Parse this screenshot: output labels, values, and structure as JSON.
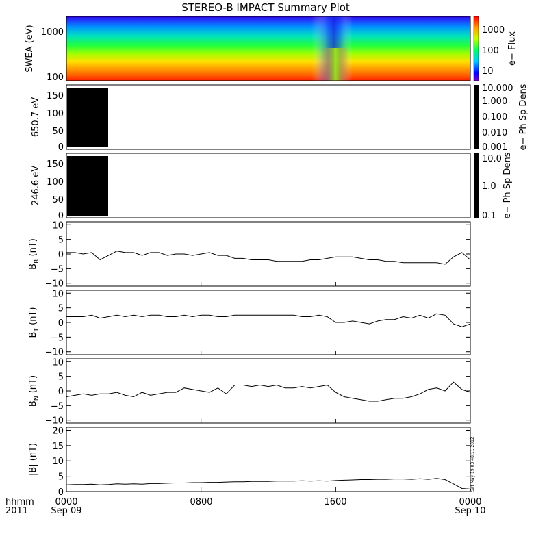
{
  "title": "STEREO-B IMPACT Summary Plot",
  "footer": {
    "x_unit": "hhmm",
    "year": "2011",
    "x_ticks": [
      "0000",
      "0800",
      "1600",
      "0000"
    ],
    "x_subticks": [
      "Sep 09",
      "Sep 10"
    ],
    "stamp": "Sat May 19 03:48:11 2012"
  },
  "panels": [
    {
      "ylabel": "SWEA (eV)",
      "cbar_label": "e− Flux",
      "yticks": [
        "1000",
        "100"
      ],
      "cbar_ticks": [
        "1000",
        "100",
        "10"
      ]
    },
    {
      "ylabel": "650.7 eV",
      "cbar_label": "e− Ph Sp Dens",
      "yticks": [
        "150",
        "100",
        "50",
        "0"
      ],
      "cbar_ticks": [
        "10.000",
        "1.000",
        "0.100",
        "0.010",
        "0.001"
      ]
    },
    {
      "ylabel": "246.6 eV",
      "cbar_label": "e− Ph Sp Dens",
      "yticks": [
        "150",
        "100",
        "50",
        "0"
      ],
      "cbar_ticks": [
        "10.0",
        "1.0",
        "0.1"
      ]
    },
    {
      "ylabel": "B",
      "ylabel_sub": "R",
      "ylabel_unit": " (nT)",
      "yticks": [
        "10",
        "5",
        "0",
        "−5",
        "−10"
      ]
    },
    {
      "ylabel": "B",
      "ylabel_sub": "T",
      "ylabel_unit": " (nT)",
      "yticks": [
        "10",
        "5",
        "0",
        "−5",
        "−10"
      ]
    },
    {
      "ylabel": "B",
      "ylabel_sub": "N",
      "ylabel_unit": " (nT)",
      "yticks": [
        "10",
        "5",
        "0",
        "−5",
        "−10"
      ]
    },
    {
      "ylabel": "|B| (nT)",
      "yticks": [
        "20",
        "15",
        "10",
        "5",
        "0"
      ]
    }
  ],
  "chart_data": [
    {
      "type": "heatmap",
      "ylabel": "SWEA (eV)",
      "ylog": true,
      "ylim": [
        90,
        2000
      ],
      "colorbar": {
        "label": "e− Flux",
        "log": true,
        "range": [
          5,
          3000
        ]
      },
      "x_range_hours": [
        0,
        24
      ],
      "note": "flux decreases with energy; depletion near 16:00-16:30"
    },
    {
      "type": "heatmap",
      "ylabel": "650.7 eV",
      "ylim": [
        0,
        180
      ],
      "colorbar": {
        "label": "e− Ph Sp Dens",
        "log": true,
        "range": [
          0.001,
          10
        ]
      },
      "filled_x_hours": [
        0,
        2.6
      ]
    },
    {
      "type": "heatmap",
      "ylabel": "246.6 eV",
      "ylim": [
        0,
        180
      ],
      "colorbar": {
        "label": "e− Ph Sp Dens",
        "log": true,
        "range": [
          0.1,
          10
        ]
      },
      "filled_x_hours": [
        0,
        2.6
      ]
    },
    {
      "type": "line",
      "ylabel": "BR (nT)",
      "ylim": [
        -11,
        11
      ],
      "x": [
        0,
        0.5,
        1,
        1.5,
        2,
        2.5,
        3,
        3.5,
        4,
        4.5,
        5,
        5.5,
        6,
        6.5,
        7,
        7.5,
        8,
        8.5,
        9,
        9.5,
        10,
        10.5,
        11,
        11.5,
        12,
        12.5,
        13,
        13.5,
        14,
        14.5,
        15,
        15.5,
        16,
        16.5,
        17,
        17.5,
        18,
        18.5,
        19,
        19.5,
        20,
        20.5,
        21,
        21.5,
        22,
        22.5,
        23,
        23.5,
        24
      ],
      "y": [
        0.5,
        0.5,
        0,
        0.5,
        -2,
        -0.5,
        1,
        0.5,
        0.5,
        -0.5,
        0.5,
        0.5,
        -0.5,
        0,
        0,
        -0.5,
        0,
        0.5,
        -0.5,
        -0.5,
        -1.5,
        -1.5,
        -2,
        -2,
        -2,
        -2.5,
        -2.5,
        -2.5,
        -2.5,
        -2,
        -2,
        -1.5,
        -1,
        -1,
        -1,
        -1.5,
        -2,
        -2,
        -2.5,
        -2.5,
        -3,
        -3,
        -3,
        -3,
        -3,
        -3.5,
        -1,
        0.5,
        -2
      ]
    },
    {
      "type": "line",
      "ylabel": "BT (nT)",
      "ylim": [
        -11,
        11
      ],
      "x": [
        0,
        0.5,
        1,
        1.5,
        2,
        2.5,
        3,
        3.5,
        4,
        4.5,
        5,
        5.5,
        6,
        6.5,
        7,
        7.5,
        8,
        8.5,
        9,
        9.5,
        10,
        10.5,
        11,
        11.5,
        12,
        12.5,
        13,
        13.5,
        14,
        14.5,
        15,
        15.5,
        16,
        16.5,
        17,
        17.5,
        18,
        18.5,
        19,
        19.5,
        20,
        20.5,
        21,
        21.5,
        22,
        22.5,
        23,
        23.5,
        24
      ],
      "y": [
        2,
        2,
        2,
        2.5,
        1.5,
        2,
        2.5,
        2,
        2.5,
        2,
        2.5,
        2.5,
        2,
        2,
        2.5,
        2,
        2.5,
        2.5,
        2,
        2,
        2.5,
        2.5,
        2.5,
        2.5,
        2.5,
        2.5,
        2.5,
        2.5,
        2,
        2,
        2.5,
        2,
        0,
        0,
        0.5,
        0,
        -0.5,
        0.5,
        1,
        1,
        2,
        1.5,
        2.5,
        1.5,
        3,
        2.5,
        -0.5,
        -1.5,
        -0.5
      ]
    },
    {
      "type": "line",
      "ylabel": "BN (nT)",
      "ylim": [
        -11,
        11
      ],
      "x": [
        0,
        0.5,
        1,
        1.5,
        2,
        2.5,
        3,
        3.5,
        4,
        4.5,
        5,
        5.5,
        6,
        6.5,
        7,
        7.5,
        8,
        8.5,
        9,
        9.5,
        10,
        10.5,
        11,
        11.5,
        12,
        12.5,
        13,
        13.5,
        14,
        14.5,
        15,
        15.5,
        16,
        16.5,
        17,
        17.5,
        18,
        18.5,
        19,
        19.5,
        20,
        20.5,
        21,
        21.5,
        22,
        22.5,
        23,
        23.5,
        24
      ],
      "y": [
        -2,
        -1.5,
        -1,
        -1.5,
        -1,
        -1,
        -0.5,
        -1.5,
        -2,
        -0.5,
        -1.5,
        -1,
        -0.5,
        -0.5,
        1,
        0.5,
        0,
        -0.5,
        1,
        -1,
        2,
        2,
        1.5,
        2,
        1.5,
        2,
        1,
        1,
        1.5,
        1,
        1.5,
        2,
        -0.5,
        -2,
        -2.5,
        -3,
        -3.5,
        -3.5,
        -3,
        -2.5,
        -2.5,
        -2,
        -1,
        0.5,
        1,
        0,
        3,
        0.5,
        -0.5
      ]
    },
    {
      "type": "line",
      "ylabel": "|B| (nT)",
      "ylim": [
        0,
        21
      ],
      "x": [
        0,
        0.5,
        1,
        1.5,
        2,
        2.5,
        3,
        3.5,
        4,
        4.5,
        5,
        5.5,
        6,
        6.5,
        7,
        7.5,
        8,
        8.5,
        9,
        9.5,
        10,
        10.5,
        11,
        11.5,
        12,
        12.5,
        13,
        13.5,
        14,
        14.5,
        15,
        15.5,
        16,
        16.5,
        17,
        17.5,
        18,
        18.5,
        19,
        19.5,
        20,
        20.5,
        21,
        21.5,
        22,
        22.5,
        23,
        23.5,
        24
      ],
      "y": [
        2.2,
        2.3,
        2.3,
        2.4,
        2.2,
        2.3,
        2.5,
        2.4,
        2.5,
        2.4,
        2.6,
        2.6,
        2.7,
        2.8,
        2.8,
        2.9,
        2.9,
        3,
        3,
        3.1,
        3.2,
        3.2,
        3.3,
        3.3,
        3.3,
        3.4,
        3.4,
        3.4,
        3.5,
        3.4,
        3.5,
        3.4,
        3.6,
        3.7,
        3.8,
        3.9,
        3.9,
        4,
        4,
        4.1,
        4.1,
        4,
        4.2,
        4,
        4.3,
        3.9,
        2.5,
        1,
        0.8
      ]
    }
  ]
}
